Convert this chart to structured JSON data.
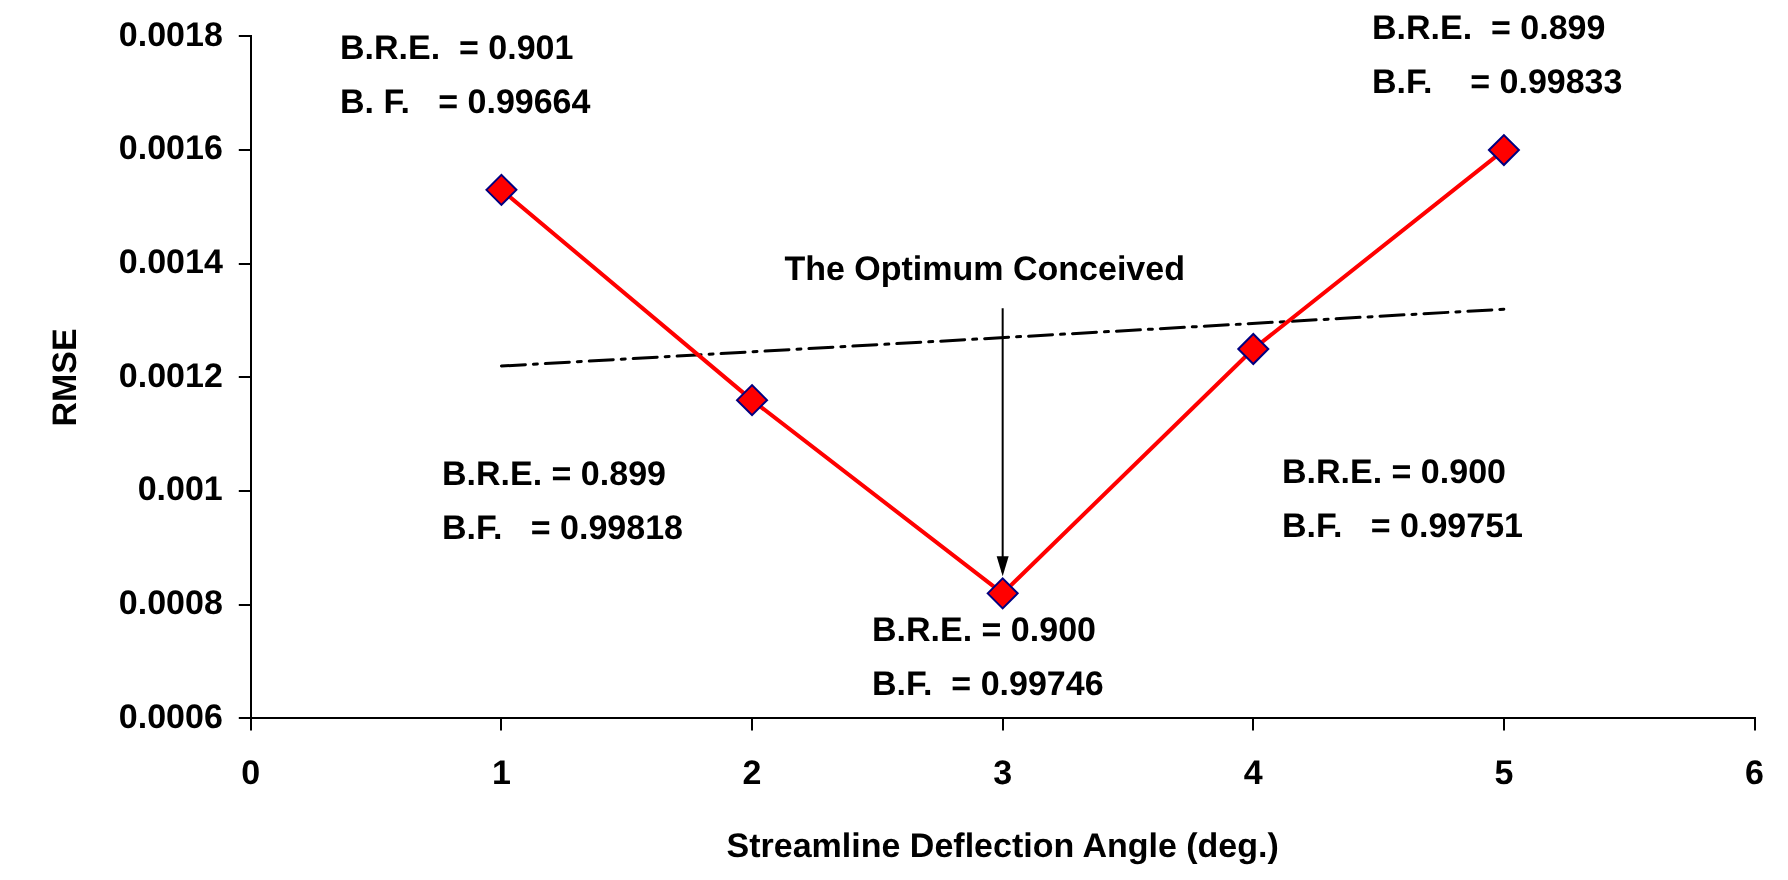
{
  "chart_data": {
    "type": "line",
    "xlabel": "Streamline Deflection Angle (deg.)",
    "ylabel": "RMSE",
    "series": [
      {
        "x": [
          1,
          2,
          3,
          4,
          5
        ],
        "values": [
          0.00153,
          0.00116,
          0.00082,
          0.00125,
          0.0016
        ],
        "color": "#ff0000",
        "marker": "diamond",
        "line_style": "solid"
      },
      {
        "x": [
          1,
          5
        ],
        "values": [
          0.00122,
          0.00132
        ],
        "color": "#000000",
        "marker": "none",
        "line_style": "dashed"
      }
    ],
    "xlim": [
      0,
      6
    ],
    "xticks": [
      0,
      1,
      2,
      3,
      4,
      5,
      6
    ],
    "ylim": [
      0.0006,
      0.0018
    ],
    "yticks": [
      0.0006,
      0.0008,
      0.001,
      0.0012,
      0.0014,
      0.0016,
      0.0018
    ],
    "grid": false,
    "legend": false,
    "annotations": [
      "B.R.E.  = 0.901\nB. F.   = 0.99664",
      "B.R.E. = 0.899\nB.F.   = 0.99818",
      "B.R.E. = 0.900\nB.F.  = 0.99746",
      "B.R.E. = 0.900\nB.F.   = 0.99751",
      "B.R.E.  = 0.899\nB.F.    = 0.99833",
      {
        "text": "The Optimum Conceived",
        "x": 3,
        "y": 0.00085
      }
    ]
  }
}
